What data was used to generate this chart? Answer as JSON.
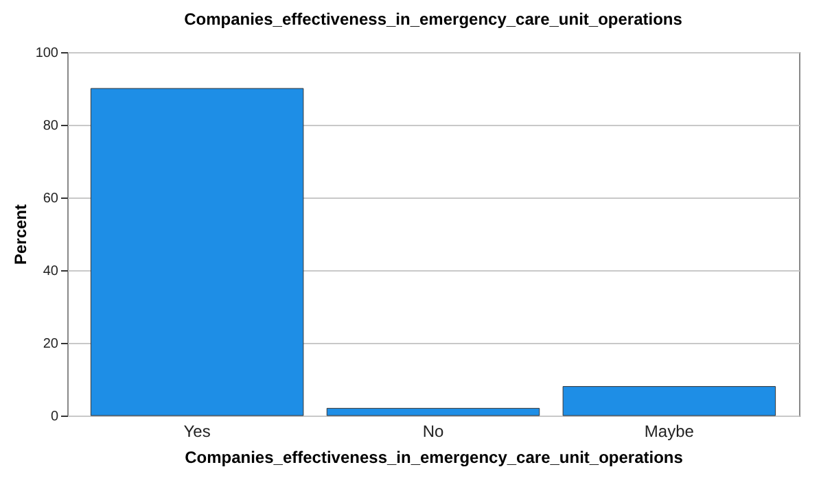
{
  "chart_data": {
    "type": "bar",
    "title": "Companies_effectiveness_in_emergency_care_unit_operations",
    "xlabel": "Companies_effectiveness_in_emergency_care_unit_operations",
    "ylabel": "Percent",
    "categories": [
      "Yes",
      "No",
      "Maybe"
    ],
    "values": [
      90,
      2,
      8
    ],
    "color": "#1e8ee6",
    "ylim": [
      0,
      100
    ],
    "yticks": [
      0,
      20,
      40,
      60,
      80,
      100
    ],
    "grid": "y"
  }
}
